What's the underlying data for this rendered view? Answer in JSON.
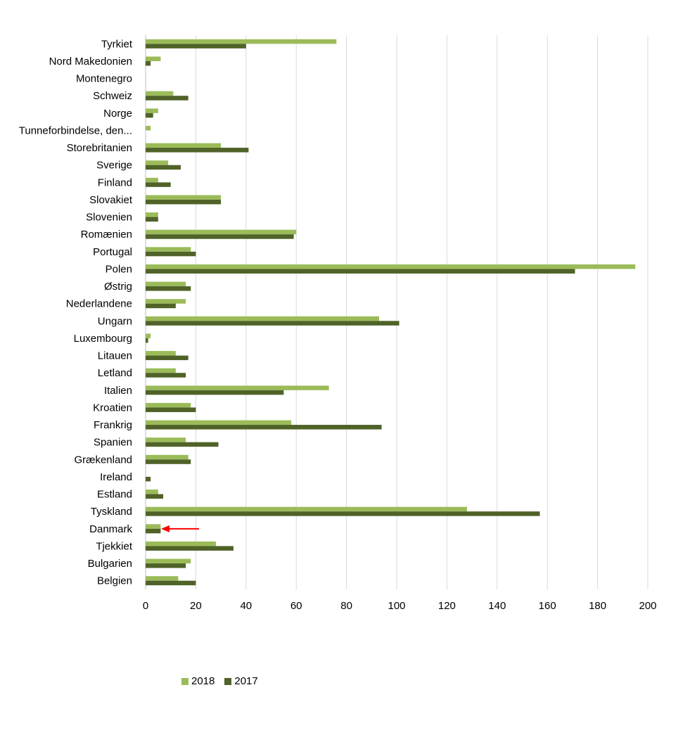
{
  "chart_data": {
    "type": "bar",
    "orientation": "horizontal",
    "categories": [
      "Tyrkiet",
      "Nord Makedonien",
      "Montenegro",
      "Schweiz",
      "Norge",
      "Tunneforbindelse, den...",
      "Storebritanien",
      "Sverige",
      "Finland",
      "Slovakiet",
      "Slovenien",
      "Romænien",
      "Portugal",
      "Polen",
      "Østrig",
      "Nederlandene",
      "Ungarn",
      "Luxembourg",
      "Litauen",
      "Letland",
      "Italien",
      "Kroatien",
      "Frankrig",
      "Spanien",
      "Grækenland",
      "Ireland",
      "Estland",
      "Tyskland",
      "Danmark",
      "Tjekkiet",
      "Bulgarien",
      "Belgien"
    ],
    "series": [
      {
        "name": "2018",
        "color": "#9bbb59",
        "values": [
          76,
          6,
          0,
          11,
          5,
          2,
          30,
          9,
          5,
          30,
          5,
          60,
          18,
          195,
          16,
          16,
          93,
          2,
          12,
          12,
          73,
          18,
          58,
          16,
          17,
          0,
          5,
          128,
          6,
          28,
          18,
          13
        ]
      },
      {
        "name": "2017",
        "color": "#4f6228",
        "values": [
          40,
          2,
          0,
          17,
          3,
          0,
          41,
          14,
          10,
          30,
          5,
          59,
          20,
          171,
          18,
          12,
          101,
          1,
          17,
          16,
          55,
          20,
          94,
          29,
          18,
          2,
          7,
          157,
          6,
          35,
          16,
          20
        ]
      }
    ],
    "xlim": [
      0,
      200
    ],
    "xticks": [
      "0",
      "20",
      "40",
      "60",
      "80",
      "100",
      "120",
      "140",
      "160",
      "180",
      "200"
    ],
    "grid": true,
    "legend_placement": "bottom-left",
    "annotation": {
      "type": "arrow",
      "target": "Danmark",
      "color": "#ff0000"
    }
  }
}
